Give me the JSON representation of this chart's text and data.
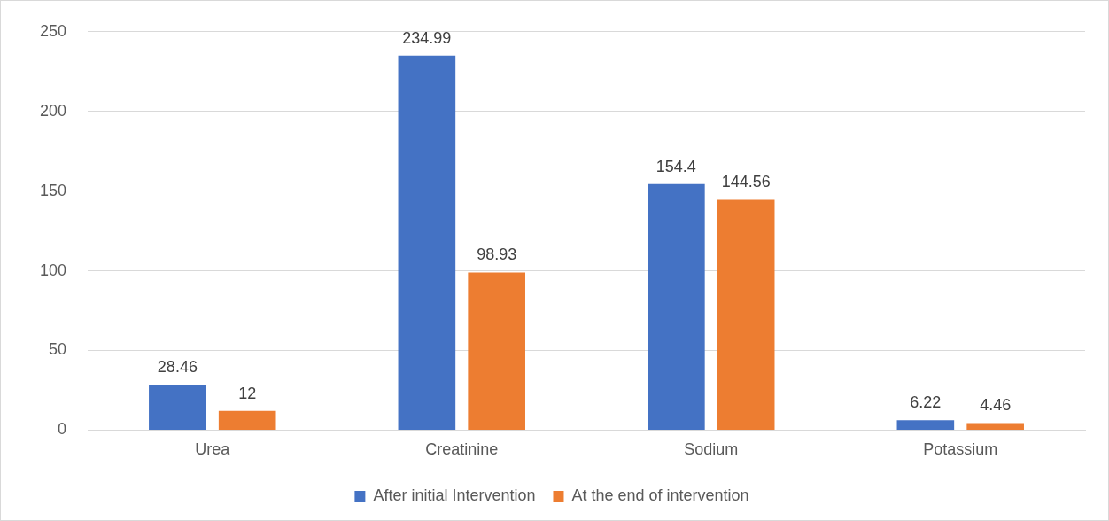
{
  "chart_data": {
    "type": "bar",
    "categories": [
      "Urea",
      "Creatinine",
      "Sodium",
      "Potassium"
    ],
    "series": [
      {
        "name": "After initial Intervention",
        "color": "#4472c4",
        "values": [
          28.46,
          234.99,
          154.4,
          6.22
        ]
      },
      {
        "name": "At the end of intervention",
        "color": "#ed7d31",
        "values": [
          12,
          98.93,
          144.56,
          4.46
        ]
      }
    ],
    "ylim": [
      0,
      250
    ],
    "yticks": [
      0,
      50,
      100,
      150,
      200,
      250
    ],
    "grid": "y",
    "legend": "bottom",
    "data_labels": true
  }
}
